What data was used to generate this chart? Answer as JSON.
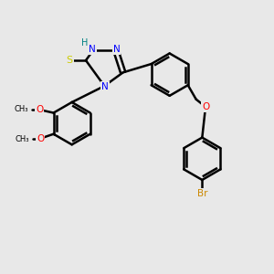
{
  "background_color": "#e8e8e8",
  "atom_colors": {
    "N": "#0000ff",
    "H": "#008080",
    "S": "#cccc00",
    "O": "#ff0000",
    "Br": "#cc8800",
    "C": "#000000"
  },
  "bond_color": "#000000",
  "bond_width": 1.8,
  "figsize": [
    3.0,
    3.0
  ],
  "dpi": 100
}
